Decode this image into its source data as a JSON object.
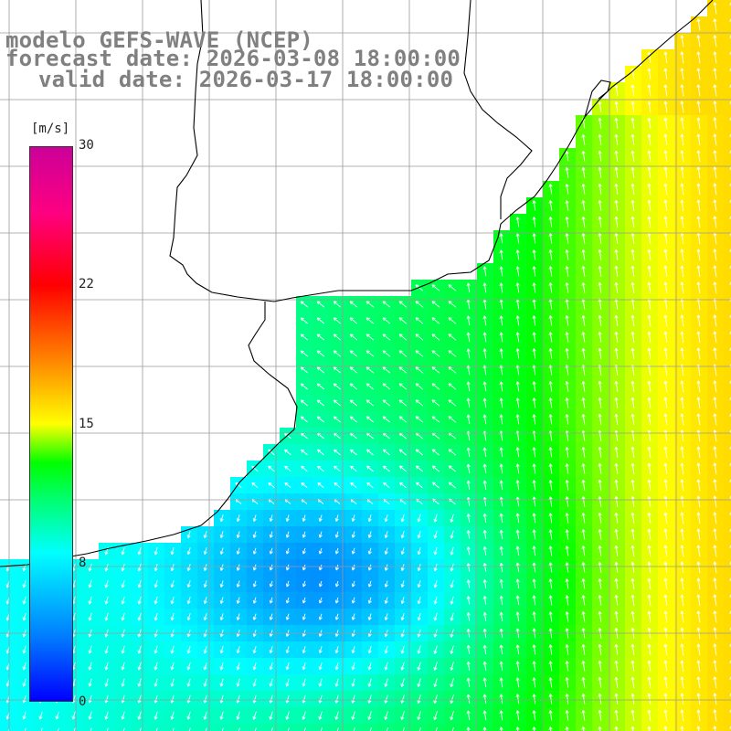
{
  "title": {
    "model": "modelo GEFS-WAVE (NCEP)",
    "forecast": "forecast date: 2026-03-08 18:00:00",
    "valid": "valid date: 2026-03-17 18:00:00"
  },
  "colorbar": {
    "unit": "[m/s]",
    "ticks": [
      "0",
      "8",
      "15",
      "22",
      "30"
    ],
    "range": [
      0,
      30
    ],
    "colors": [
      "#0000ff",
      "#0080ff",
      "#00ffff",
      "#00ff66",
      "#00ff00",
      "#ffff00",
      "#ff8000",
      "#ff0000",
      "#ff0080",
      "#cc0099"
    ]
  },
  "map": {
    "variable": "wind speed and direction",
    "land_color": "#ffffff",
    "coast_color": "#000000",
    "grid_color": "#9a9a9a",
    "arrow_color": "#ffffff"
  }
}
